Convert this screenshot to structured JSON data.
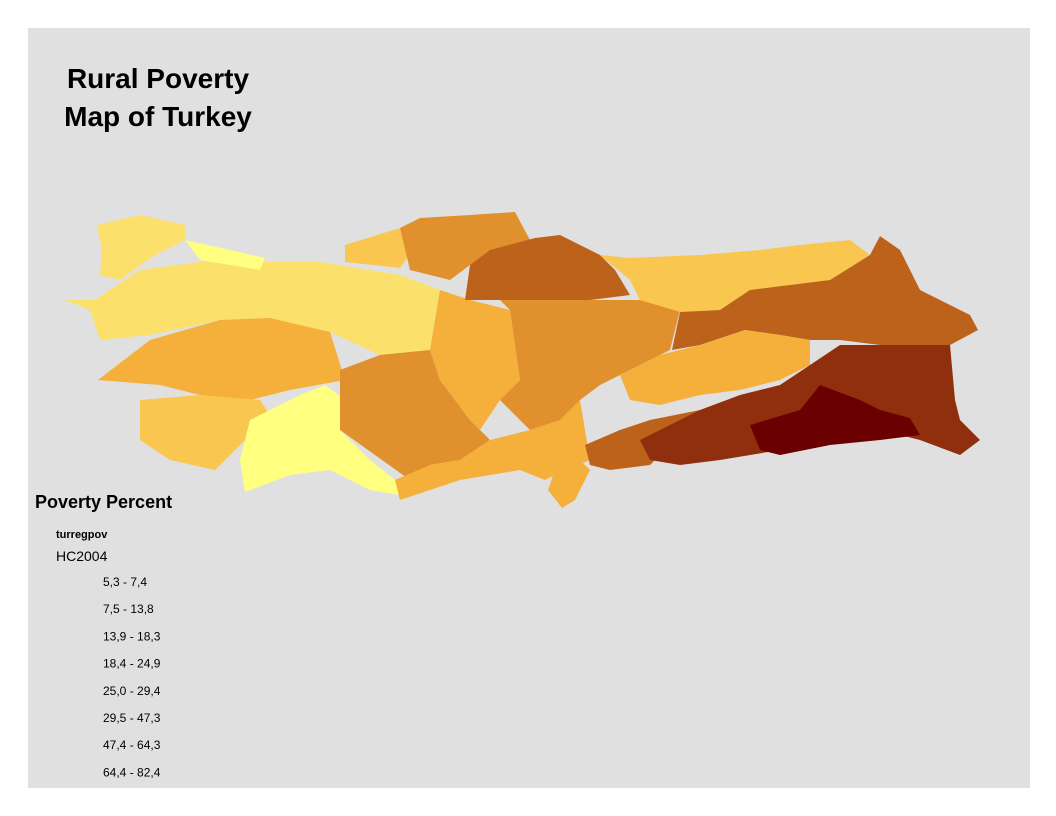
{
  "title_lines": [
    "Rural Poverty",
    "Map of Turkey"
  ],
  "legend": {
    "title": "Poverty Percent",
    "layer": "turregpov",
    "field": "HC2004",
    "classes": [
      {
        "label": "5,3 - 7,4",
        "color": "#ffff80"
      },
      {
        "label": "7,5 - 13,8",
        "color": "#fbe06b"
      },
      {
        "label": "13,9 - 18,3",
        "color": "#f9c650"
      },
      {
        "label": "18,4 - 24,9",
        "color": "#f5b03c"
      },
      {
        "label": "25,0 - 29,4",
        "color": "#e0902c"
      },
      {
        "label": "29,5 - 47,3",
        "color": "#bd621b"
      },
      {
        "label": "47,4 - 64,3",
        "color": "#902f0e"
      },
      {
        "label": "64,4 - 82,4",
        "color": "#6b0000"
      }
    ]
  }
}
